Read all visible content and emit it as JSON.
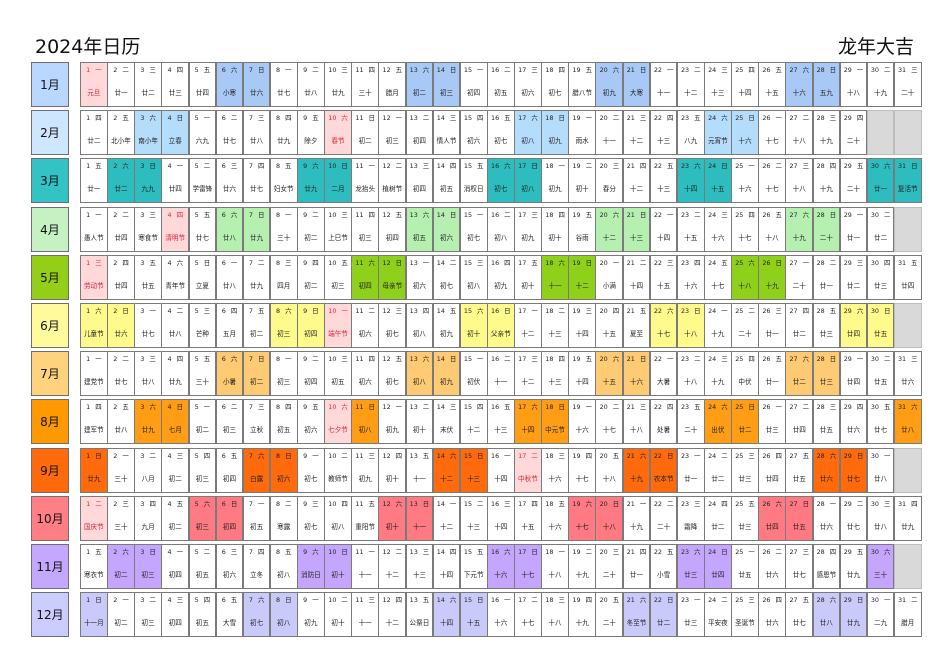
{
  "header": {
    "title": "2024年日历",
    "subtitle": "龙年大吉"
  },
  "palette": [
    {
      "label": "#b9d7ff",
      "hi": "#a8c8f5"
    },
    {
      "label": "#cfe6ff",
      "hi": "#b4dcfb"
    },
    {
      "label": "#33c3c4",
      "hi": "#2ebdbe"
    },
    {
      "label": "#c6f2c3",
      "hi": "#b5f0b0"
    },
    {
      "label": "#94ce18",
      "hi": "#8fd01a"
    },
    {
      "label": "#fffb9c",
      "hi": "#fffa8c"
    },
    {
      "label": "#ffd27d",
      "hi": "#ffca74"
    },
    {
      "label": "#ff9900",
      "hi": "#ff9d14"
    },
    {
      "label": "#ff6a0c",
      "hi": "#ff6a0c"
    },
    {
      "label": "#ff7f85",
      "hi": "#ff7a82"
    },
    {
      "label": "#c4a8ff",
      "hi": "#c4a6ff"
    },
    {
      "label": "#cccdff",
      "hi": "#cacafa"
    }
  ],
  "holiday_bg": "#ffd9d9",
  "months": [
    {
      "label": "1月",
      "startWeekday": 0,
      "lunar": [
        "元旦",
        "廿一",
        "廿二",
        "廿三",
        "廿四",
        "小寒",
        "廿六",
        "廿七",
        "廿八",
        "廿九",
        "三十",
        "腊月",
        "初二",
        "初三",
        "初四",
        "初五",
        "初六",
        "初七",
        "腊八节",
        "初九",
        "大寒",
        "十一",
        "十二",
        "十三",
        "十四",
        "十五",
        "十六",
        "五九",
        "十八",
        "十九",
        "二十"
      ],
      "hi": [
        6,
        7,
        13,
        14,
        20,
        21,
        27,
        28
      ],
      "hol": [
        1
      ]
    },
    {
      "label": "2月",
      "startWeekday": 3,
      "lunar": [
        "廿二",
        "北小年",
        "南小年",
        "立春",
        "六九",
        "廿七",
        "廿八",
        "廿九",
        "除夕",
        "春节",
        "初二",
        "初三",
        "初四",
        "情人节",
        "初六",
        "初七",
        "初八",
        "初九",
        "雨水",
        "十一",
        "十二",
        "十三",
        "八九",
        "元宵节",
        "十六",
        "十七",
        "十八",
        "十九",
        "二十"
      ],
      "hi": [
        3,
        4,
        17,
        18,
        24,
        25
      ],
      "hol": [
        10
      ]
    },
    {
      "label": "3月",
      "startWeekday": 4,
      "lunar": [
        "廿一",
        "廿二",
        "九九",
        "廿四",
        "学雷锋",
        "廿六",
        "廿七",
        "妇女节",
        "廿九",
        "二月",
        "龙抬头",
        "植树节",
        "初四",
        "初五",
        "消权日",
        "初七",
        "初八",
        "初九",
        "初十",
        "春分",
        "十二",
        "十三",
        "十四",
        "十五",
        "十六",
        "十七",
        "十八",
        "十九",
        "二十",
        "廿一",
        "复活节"
      ],
      "hi": [
        2,
        3,
        9,
        10,
        16,
        17,
        23,
        24,
        30,
        31
      ],
      "hol": []
    },
    {
      "label": "4月",
      "startWeekday": 0,
      "lunar": [
        "愚人节",
        "廿四",
        "寒食节",
        "清明节",
        "廿七",
        "廿八",
        "廿九",
        "三十",
        "初二",
        "上巳节",
        "初三",
        "初四",
        "初五",
        "初六",
        "初七",
        "初八",
        "初九",
        "初十",
        "谷雨",
        "十二",
        "十三",
        "十四",
        "十五",
        "十六",
        "十七",
        "十八",
        "十九",
        "二十",
        "廿一",
        "廿二"
      ],
      "hi": [
        6,
        7,
        13,
        14,
        20,
        21,
        27,
        28
      ],
      "hol": [
        4
      ]
    },
    {
      "label": "5月",
      "startWeekday": 2,
      "lunar": [
        "劳动节",
        "廿四",
        "廿五",
        "青年节",
        "立夏",
        "廿八",
        "廿九",
        "四月",
        "初二",
        "初三",
        "初四",
        "母亲节",
        "初六",
        "初七",
        "初八",
        "初九",
        "初十",
        "十一",
        "十二",
        "小满",
        "十四",
        "十五",
        "十六",
        "十七",
        "十八",
        "十九",
        "二十",
        "廿一",
        "廿二",
        "廿三",
        "廿四"
      ],
      "hi": [
        11,
        12,
        18,
        19,
        25,
        26
      ],
      "hol": [
        1
      ]
    },
    {
      "label": "6月",
      "startWeekday": 5,
      "lunar": [
        "儿童节",
        "廿六",
        "廿七",
        "廿八",
        "芒种",
        "五月",
        "初二",
        "初三",
        "初四",
        "端午节",
        "初六",
        "初七",
        "初八",
        "初九",
        "初十",
        "父亲节",
        "十二",
        "十三",
        "十四",
        "十五",
        "夏至",
        "十七",
        "十八",
        "十九",
        "二十",
        "廿一",
        "廿二",
        "廿三",
        "廿四",
        "廿五"
      ],
      "hi": [
        1,
        2,
        8,
        9,
        15,
        16,
        22,
        23,
        29,
        30
      ],
      "hol": [
        10
      ]
    },
    {
      "label": "7月",
      "startWeekday": 0,
      "lunar": [
        "建党节",
        "廿七",
        "廿八",
        "廿九",
        "三十",
        "小暑",
        "初二",
        "初三",
        "初四",
        "初五",
        "初六",
        "初七",
        "初八",
        "初九",
        "初伏",
        "十一",
        "十二",
        "十三",
        "十四",
        "十五",
        "十六",
        "大暑",
        "十八",
        "十九",
        "中伏",
        "廿一",
        "廿二",
        "廿三",
        "廿四",
        "廿五",
        "廿六"
      ],
      "hi": [
        6,
        7,
        13,
        14,
        20,
        21,
        27,
        28
      ],
      "hol": []
    },
    {
      "label": "8月",
      "startWeekday": 3,
      "lunar": [
        "建军节",
        "廿八",
        "廿九",
        "七月",
        "初二",
        "初三",
        "立秋",
        "初五",
        "初六",
        "七夕节",
        "初八",
        "初九",
        "初十",
        "末伏",
        "十二",
        "十三",
        "十四",
        "中元节",
        "十六",
        "十七",
        "十八",
        "处暑",
        "二十",
        "出伏",
        "廿二",
        "廿三",
        "廿四",
        "廿五",
        "廿六",
        "廿七",
        "廿八"
      ],
      "hi": [
        3,
        4,
        10,
        11,
        17,
        18,
        24,
        25,
        31
      ],
      "hol": [
        10
      ]
    },
    {
      "label": "9月",
      "startWeekday": 6,
      "lunar": [
        "廿九",
        "三十",
        "八月",
        "初二",
        "初三",
        "初四",
        "白露",
        "初六",
        "初七",
        "教师节",
        "初九",
        "初十",
        "十一",
        "十二",
        "十三",
        "十四",
        "中秋节",
        "十六",
        "十七",
        "十八",
        "十九",
        "农本节",
        "廿一",
        "廿二",
        "廿三",
        "廿四",
        "廿五",
        "廿六",
        "廿七",
        "廿八"
      ],
      "hi": [
        1,
        7,
        8,
        14,
        15,
        21,
        22,
        28,
        29
      ],
      "hol": [
        17
      ]
    },
    {
      "label": "10月",
      "startWeekday": 1,
      "lunar": [
        "国庆节",
        "三十",
        "九月",
        "初二",
        "初三",
        "初四",
        "初五",
        "寒露",
        "初七",
        "初八",
        "重阳节",
        "初十",
        "十一",
        "十二",
        "十三",
        "十四",
        "十五",
        "十六",
        "十七",
        "十八",
        "十九",
        "二十",
        "霜降",
        "廿二",
        "廿三",
        "廿四",
        "廿五",
        "廿六",
        "廿七",
        "廿八",
        "廿九"
      ],
      "hi": [
        5,
        6,
        12,
        13,
        19,
        20,
        26,
        27
      ],
      "hol": [
        1
      ]
    },
    {
      "label": "11月",
      "startWeekday": 4,
      "lunar": [
        "寒衣节",
        "初二",
        "初三",
        "初四",
        "初五",
        "初六",
        "立冬",
        "初八",
        "消防日",
        "初十",
        "十一",
        "十二",
        "十三",
        "十四",
        "下元节",
        "十六",
        "十七",
        "十八",
        "十九",
        "二十",
        "廿一",
        "小雪",
        "廿三",
        "廿四",
        "廿五",
        "廿六",
        "廿七",
        "感恩节",
        "廿九",
        "三十"
      ],
      "hi": [
        2,
        3,
        9,
        10,
        16,
        17,
        23,
        24,
        30
      ],
      "hol": []
    },
    {
      "label": "12月",
      "startWeekday": 6,
      "lunar": [
        "十一月",
        "初二",
        "初三",
        "初四",
        "初五",
        "大雪",
        "初七",
        "初八",
        "初九",
        "初十",
        "十一",
        "十二",
        "公祭日",
        "十四",
        "十五",
        "十六",
        "十七",
        "十八",
        "十九",
        "二十",
        "冬至节",
        "廿二",
        "廿三",
        "平安夜",
        "圣诞节",
        "廿六",
        "廿七",
        "廿八",
        "廿九",
        "二九",
        "腊月"
      ],
      "hi": [
        1,
        7,
        8,
        14,
        15,
        21,
        22,
        28,
        29
      ],
      "hol": []
    }
  ],
  "weekdays": [
    "一",
    "二",
    "三",
    "四",
    "五",
    "六",
    "日"
  ]
}
